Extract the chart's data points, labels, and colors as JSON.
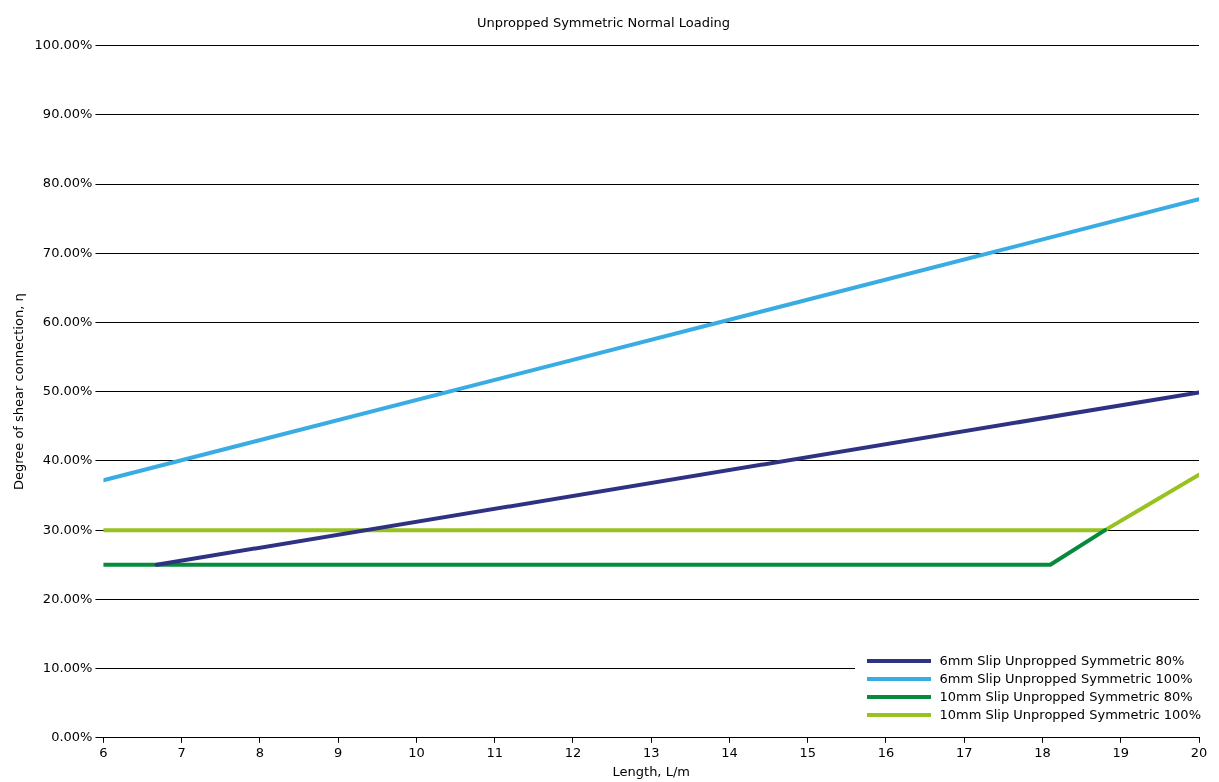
{
  "chart_data": {
    "type": "line",
    "title": "Unpropped Symmetric Normal Loading",
    "xlabel": "Length, L/m",
    "ylabel": "Degree of shear connection, η",
    "series": [
      {
        "name": "6mm Slip Unpropped Symmetric 80%",
        "color": "#2e3283",
        "x": [
          6.68,
          20
        ],
        "values": [
          25,
          49.9
        ]
      },
      {
        "name": "6mm Slip Unpropped Symmetric 100%",
        "color": "#39ade3",
        "x": [
          6,
          20
        ],
        "values": [
          37.2,
          77.8
        ]
      },
      {
        "name": "10mm Slip Unpropped Symmetric 80%",
        "color": "#078a3b",
        "x": [
          6,
          18.1,
          18.8
        ],
        "values": [
          25,
          25,
          30
        ]
      },
      {
        "name": "10mm Slip Unpropped Symmetric 100%",
        "color": "#97c21f",
        "x": [
          6,
          18.8,
          20
        ],
        "values": [
          30,
          30,
          38
        ]
      }
    ],
    "xlim": [
      6,
      20
    ],
    "xticks": [
      6,
      7,
      8,
      9,
      10,
      11,
      12,
      13,
      14,
      15,
      16,
      17,
      18,
      19,
      20
    ],
    "ylim": [
      0,
      100
    ],
    "yticks": [
      {
        "value": 0,
        "label": "0.00%"
      },
      {
        "value": 10,
        "label": "10.00%"
      },
      {
        "value": 20,
        "label": "20.00%"
      },
      {
        "value": 30,
        "label": "30.00%"
      },
      {
        "value": 40,
        "label": "40.00%"
      },
      {
        "value": 50,
        "label": "50.00%"
      },
      {
        "value": 60,
        "label": "60.00%"
      },
      {
        "value": 70,
        "label": "70.00%"
      },
      {
        "value": 80,
        "label": "80.00%"
      },
      {
        "value": 90,
        "label": "90.00%"
      },
      {
        "value": 100,
        "label": "100.00%"
      }
    ],
    "grid": "y",
    "legend": "bottom right",
    "marker": "none",
    "line_style": "solid"
  }
}
